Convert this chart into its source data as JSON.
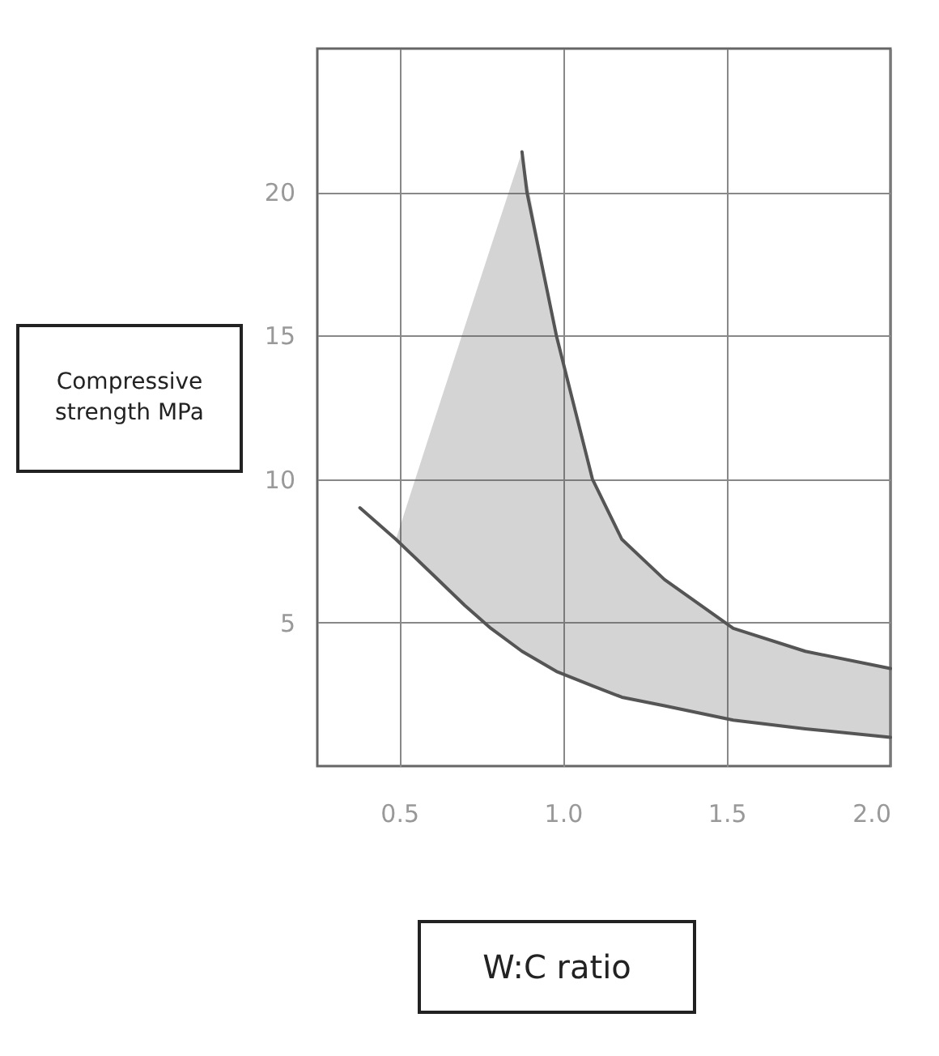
{
  "chart_data": {
    "type": "line",
    "xlabel": "W:C ratio",
    "ylabel": "Compressive strength MPa",
    "xlim": [
      0.25,
      2.0
    ],
    "xticks": [
      {
        "value": 0.5,
        "label": "0.5"
      },
      {
        "value": 1.0,
        "label": "1.0"
      },
      {
        "value": 1.5,
        "label": "1.5"
      },
      {
        "value": 2.0,
        "label": "2.0"
      }
    ],
    "ylim": [
      0,
      25
    ],
    "yticks": [
      5,
      10,
      15,
      20
    ],
    "grid": true,
    "marker": "none",
    "line_style": "solid",
    "series": [
      {
        "color": "#555555",
        "x": [
          0.875,
          0.89,
          0.98,
          1.09,
          1.18,
          1.31,
          1.52,
          1.74,
          2.0
        ],
        "values": [
          21.4,
          20,
          15,
          10,
          7.9,
          6.5,
          4.8,
          4.0,
          3.4
        ]
      },
      {
        "color": "#555555",
        "x": [
          0.38,
          0.49,
          0.6,
          0.7,
          0.78,
          0.875,
          0.98,
          1.09,
          1.18,
          1.31,
          1.52,
          1.74,
          2.0
        ],
        "values": [
          9.0,
          7.9,
          6.7,
          5.6,
          4.8,
          4.0,
          3.3,
          2.8,
          2.4,
          2.1,
          1.6,
          1.3,
          1.0
        ],
        "lower": [
          null,
          7.9,
          6.7,
          5.6,
          4.8,
          4.0,
          3.3,
          2.8,
          2.4,
          2.1,
          1.6,
          1.3,
          1.0
        ],
        "upper": [
          null,
          7.9,
          11.8,
          15.3,
          18.1,
          21.4,
          15.0,
          10.0,
          7.9,
          6.5,
          4.8,
          4.0,
          3.4
        ]
      }
    ]
  }
}
